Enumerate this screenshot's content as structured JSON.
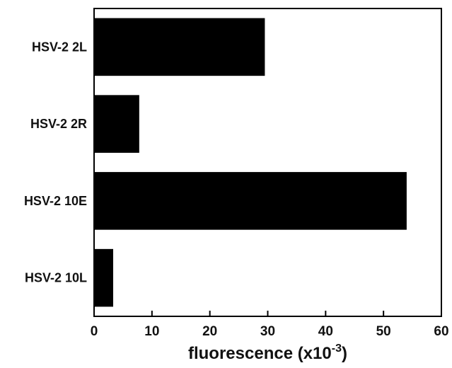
{
  "chart_data": {
    "type": "bar",
    "orientation": "horizontal",
    "categories": [
      "HSV-2 2L",
      "HSV-2 2R",
      "HSV-2 10E",
      "HSV-2 10L"
    ],
    "values": [
      29.5,
      7.8,
      54.0,
      3.3
    ],
    "xlabel": "fluorescence (x10",
    "xlabel_superscript": "-3",
    "xlabel_suffix": ")",
    "xlim": [
      0,
      60
    ],
    "xticks": [
      0,
      10,
      20,
      30,
      40,
      50,
      60
    ],
    "grid": false,
    "colors": {
      "bar": "#000000",
      "axis": "#000000",
      "background": "#ffffff"
    }
  }
}
